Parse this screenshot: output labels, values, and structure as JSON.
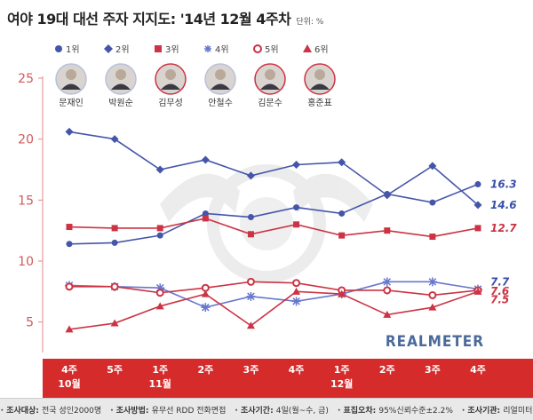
{
  "header": {
    "title": "여야 19대 대선 주자 지지도: '14년 12월 4주차",
    "unit": "단위: %"
  },
  "legend": [
    {
      "rank": "1위",
      "name": "문재인",
      "color": "#4455aa",
      "marker": "circle"
    },
    {
      "rank": "2위",
      "name": "박원순",
      "color": "#4455aa",
      "marker": "diamond"
    },
    {
      "rank": "3위",
      "name": "김무성",
      "color": "#cc3344",
      "marker": "square"
    },
    {
      "rank": "4위",
      "name": "안철수",
      "color": "#6677cc",
      "marker": "star"
    },
    {
      "rank": "5위",
      "name": "김문수",
      "color": "#cc3344",
      "marker": "open-circle"
    },
    {
      "rank": "6위",
      "name": "홍준표",
      "color": "#cc3344",
      "marker": "triangle"
    }
  ],
  "watermark": "REALMETER",
  "footer": [
    {
      "label": "조사대상",
      "text": "전국 성인2000명"
    },
    {
      "label": "조사방법",
      "text": "유무선 RDD 전화면접"
    },
    {
      "label": "조사기간",
      "text": "4일(월~수, 금)"
    },
    {
      "label": "표집오차",
      "text": "95%신뢰수준±2.2%"
    },
    {
      "label": "조사기관",
      "text": "리얼미터"
    }
  ],
  "chart_data": {
    "type": "line",
    "categories": [
      [
        "4주",
        "10월"
      ],
      [
        "5주",
        ""
      ],
      [
        "1주",
        "11월"
      ],
      [
        "2주",
        ""
      ],
      [
        "3주",
        ""
      ],
      [
        "4주",
        ""
      ],
      [
        "1주",
        "12월"
      ],
      [
        "2주",
        ""
      ],
      [
        "3주",
        ""
      ],
      [
        "4주",
        ""
      ]
    ],
    "ylim": [
      2.5,
      25
    ],
    "yticks": [
      5,
      10,
      15,
      20,
      25
    ],
    "grid": false,
    "legend_position": "top",
    "series": [
      {
        "name": "문재인",
        "color": "#4455aa",
        "marker": "circle",
        "values": [
          11.4,
          11.5,
          12.1,
          13.9,
          13.6,
          14.4,
          13.9,
          15.5,
          14.8,
          16.3
        ],
        "end_label": "16.3"
      },
      {
        "name": "박원순",
        "color": "#4455aa",
        "marker": "diamond",
        "values": [
          20.6,
          20.0,
          17.5,
          18.3,
          17.0,
          17.9,
          18.1,
          15.4,
          17.8,
          14.6
        ],
        "end_label": "14.6"
      },
      {
        "name": "김무성",
        "color": "#cc3344",
        "marker": "square",
        "values": [
          12.8,
          12.7,
          12.7,
          13.5,
          12.2,
          13.0,
          12.1,
          12.5,
          12.0,
          12.7
        ],
        "end_label": "12.7"
      },
      {
        "name": "안철수",
        "color": "#6677cc",
        "marker": "star",
        "values": [
          8.0,
          7.9,
          7.8,
          6.2,
          7.1,
          6.7,
          7.3,
          8.3,
          8.3,
          7.7
        ],
        "end_label": "7.7"
      },
      {
        "name": "김문수",
        "color": "#cc3344",
        "marker": "open-circle",
        "values": [
          7.9,
          7.9,
          7.4,
          7.8,
          8.3,
          8.2,
          7.6,
          7.6,
          7.2,
          7.6
        ],
        "end_label": "7.6"
      },
      {
        "name": "홍준표",
        "color": "#cc3344",
        "marker": "triangle",
        "values": [
          4.4,
          4.9,
          6.3,
          7.3,
          4.7,
          7.5,
          7.3,
          5.6,
          6.2,
          7.5
        ],
        "end_label": "7.5"
      }
    ]
  }
}
